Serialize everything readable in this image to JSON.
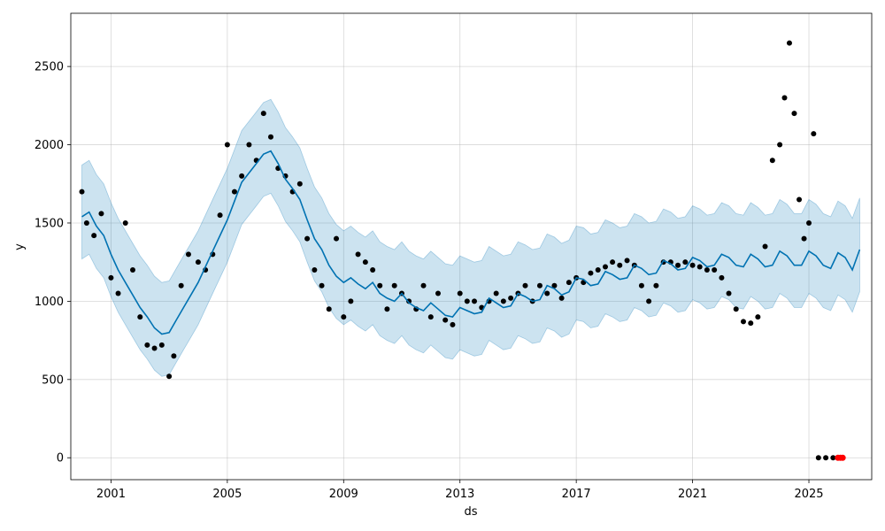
{
  "chart_data": {
    "type": "line",
    "title": "",
    "xlabel": "ds",
    "ylabel": "y",
    "x_range": [
      "1999-08-15",
      "2027-03-01"
    ],
    "ylim": [
      -140,
      2840
    ],
    "x_ticks": [
      "2001",
      "2005",
      "2009",
      "2013",
      "2017",
      "2021",
      "2025"
    ],
    "y_ticks": [
      0,
      500,
      1000,
      1500,
      2000,
      2500
    ],
    "grid": true,
    "legend": "none",
    "colors": {
      "forecast": "#0072b2",
      "interval": "#0072b2",
      "observed": "#000000",
      "highlight": "#ff0000"
    },
    "series": [
      {
        "role": "forecast-yhat",
        "points": [
          [
            "2000-01-01",
            1540
          ],
          [
            "2000-04-01",
            1570
          ],
          [
            "2000-07-01",
            1480
          ],
          [
            "2000-10-01",
            1420
          ],
          [
            "2001-01-01",
            1300
          ],
          [
            "2001-04-01",
            1200
          ],
          [
            "2001-07-01",
            1120
          ],
          [
            "2001-10-01",
            1040
          ],
          [
            "2002-01-01",
            960
          ],
          [
            "2002-04-01",
            900
          ],
          [
            "2002-07-01",
            830
          ],
          [
            "2002-10-01",
            790
          ],
          [
            "2003-01-01",
            800
          ],
          [
            "2003-04-01",
            880
          ],
          [
            "2003-07-01",
            960
          ],
          [
            "2003-10-01",
            1040
          ],
          [
            "2004-01-01",
            1120
          ],
          [
            "2004-04-01",
            1220
          ],
          [
            "2004-07-01",
            1320
          ],
          [
            "2004-10-01",
            1420
          ],
          [
            "2005-01-01",
            1520
          ],
          [
            "2005-04-01",
            1640
          ],
          [
            "2005-07-01",
            1760
          ],
          [
            "2005-10-01",
            1820
          ],
          [
            "2006-01-01",
            1880
          ],
          [
            "2006-04-01",
            1940
          ],
          [
            "2006-07-01",
            1960
          ],
          [
            "2006-10-01",
            1880
          ],
          [
            "2007-01-01",
            1780
          ],
          [
            "2007-04-01",
            1720
          ],
          [
            "2007-07-01",
            1650
          ],
          [
            "2007-10-01",
            1520
          ],
          [
            "2008-01-01",
            1400
          ],
          [
            "2008-04-01",
            1330
          ],
          [
            "2008-07-01",
            1230
          ],
          [
            "2008-10-01",
            1160
          ],
          [
            "2009-01-01",
            1120
          ],
          [
            "2009-04-01",
            1150
          ],
          [
            "2009-07-01",
            1110
          ],
          [
            "2009-10-01",
            1080
          ],
          [
            "2010-01-01",
            1120
          ],
          [
            "2010-04-01",
            1050
          ],
          [
            "2010-07-01",
            1020
          ],
          [
            "2010-10-01",
            1000
          ],
          [
            "2011-01-01",
            1050
          ],
          [
            "2011-04-01",
            990
          ],
          [
            "2011-07-01",
            960
          ],
          [
            "2011-10-01",
            940
          ],
          [
            "2012-01-01",
            990
          ],
          [
            "2012-04-01",
            950
          ],
          [
            "2012-07-01",
            910
          ],
          [
            "2012-10-01",
            900
          ],
          [
            "2013-01-01",
            960
          ],
          [
            "2013-04-01",
            940
          ],
          [
            "2013-07-01",
            920
          ],
          [
            "2013-10-01",
            930
          ],
          [
            "2014-01-01",
            1020
          ],
          [
            "2014-04-01",
            990
          ],
          [
            "2014-07-01",
            960
          ],
          [
            "2014-10-01",
            970
          ],
          [
            "2015-01-01",
            1050
          ],
          [
            "2015-04-01",
            1030
          ],
          [
            "2015-07-01",
            1000
          ],
          [
            "2015-10-01",
            1010
          ],
          [
            "2016-01-01",
            1100
          ],
          [
            "2016-04-01",
            1080
          ],
          [
            "2016-07-01",
            1040
          ],
          [
            "2016-10-01",
            1060
          ],
          [
            "2017-01-01",
            1150
          ],
          [
            "2017-04-01",
            1140
          ],
          [
            "2017-07-01",
            1100
          ],
          [
            "2017-10-01",
            1110
          ],
          [
            "2018-01-01",
            1190
          ],
          [
            "2018-04-01",
            1170
          ],
          [
            "2018-07-01",
            1140
          ],
          [
            "2018-10-01",
            1150
          ],
          [
            "2019-01-01",
            1230
          ],
          [
            "2019-04-01",
            1210
          ],
          [
            "2019-07-01",
            1170
          ],
          [
            "2019-10-01",
            1180
          ],
          [
            "2020-01-01",
            1260
          ],
          [
            "2020-04-01",
            1240
          ],
          [
            "2020-07-01",
            1200
          ],
          [
            "2020-10-01",
            1210
          ],
          [
            "2021-01-01",
            1280
          ],
          [
            "2021-04-01",
            1260
          ],
          [
            "2021-07-01",
            1220
          ],
          [
            "2021-10-01",
            1230
          ],
          [
            "2022-01-01",
            1300
          ],
          [
            "2022-04-01",
            1280
          ],
          [
            "2022-07-01",
            1230
          ],
          [
            "2022-10-01",
            1220
          ],
          [
            "2023-01-01",
            1300
          ],
          [
            "2023-04-01",
            1270
          ],
          [
            "2023-07-01",
            1220
          ],
          [
            "2023-10-01",
            1230
          ],
          [
            "2024-01-01",
            1320
          ],
          [
            "2024-04-01",
            1290
          ],
          [
            "2024-07-01",
            1230
          ],
          [
            "2024-10-01",
            1230
          ],
          [
            "2025-01-01",
            1320
          ],
          [
            "2025-04-01",
            1290
          ],
          [
            "2025-07-01",
            1230
          ],
          [
            "2025-10-01",
            1210
          ],
          [
            "2026-01-01",
            1310
          ],
          [
            "2026-04-01",
            1280
          ],
          [
            "2026-07-01",
            1200
          ],
          [
            "2026-10-01",
            1330
          ]
        ]
      },
      {
        "role": "observed",
        "points": [
          [
            "2000-01-01",
            1700
          ],
          [
            "2000-03-01",
            1500
          ],
          [
            "2000-06-01",
            1420
          ],
          [
            "2000-09-01",
            1560
          ],
          [
            "2001-01-01",
            1150
          ],
          [
            "2001-04-01",
            1050
          ],
          [
            "2001-07-01",
            1500
          ],
          [
            "2001-10-01",
            1200
          ],
          [
            "2002-01-01",
            900
          ],
          [
            "2002-04-01",
            720
          ],
          [
            "2002-07-01",
            700
          ],
          [
            "2002-10-01",
            720
          ],
          [
            "2003-01-01",
            520
          ],
          [
            "2003-03-01",
            650
          ],
          [
            "2003-06-01",
            1100
          ],
          [
            "2003-09-01",
            1300
          ],
          [
            "2004-01-01",
            1250
          ],
          [
            "2004-04-01",
            1200
          ],
          [
            "2004-07-01",
            1300
          ],
          [
            "2004-10-01",
            1550
          ],
          [
            "2005-01-01",
            2000
          ],
          [
            "2005-04-01",
            1700
          ],
          [
            "2005-07-01",
            1800
          ],
          [
            "2005-10-01",
            2000
          ],
          [
            "2006-01-01",
            1900
          ],
          [
            "2006-04-01",
            2200
          ],
          [
            "2006-07-01",
            2050
          ],
          [
            "2006-10-01",
            1850
          ],
          [
            "2007-01-01",
            1800
          ],
          [
            "2007-04-01",
            1700
          ],
          [
            "2007-07-01",
            1750
          ],
          [
            "2007-10-01",
            1400
          ],
          [
            "2008-01-01",
            1200
          ],
          [
            "2008-04-01",
            1100
          ],
          [
            "2008-07-01",
            950
          ],
          [
            "2008-10-01",
            1400
          ],
          [
            "2009-01-01",
            900
          ],
          [
            "2009-04-01",
            1000
          ],
          [
            "2009-07-01",
            1300
          ],
          [
            "2009-10-01",
            1250
          ],
          [
            "2010-01-01",
            1200
          ],
          [
            "2010-04-01",
            1100
          ],
          [
            "2010-07-01",
            950
          ],
          [
            "2010-10-01",
            1100
          ],
          [
            "2011-01-01",
            1050
          ],
          [
            "2011-04-01",
            1000
          ],
          [
            "2011-07-01",
            950
          ],
          [
            "2011-10-01",
            1100
          ],
          [
            "2012-01-01",
            900
          ],
          [
            "2012-04-01",
            1050
          ],
          [
            "2012-07-01",
            880
          ],
          [
            "2012-10-01",
            850
          ],
          [
            "2013-01-01",
            1050
          ],
          [
            "2013-04-01",
            1000
          ],
          [
            "2013-07-01",
            1000
          ],
          [
            "2013-10-01",
            960
          ],
          [
            "2014-01-01",
            1000
          ],
          [
            "2014-04-01",
            1050
          ],
          [
            "2014-07-01",
            1000
          ],
          [
            "2014-10-01",
            1020
          ],
          [
            "2015-01-01",
            1050
          ],
          [
            "2015-04-01",
            1100
          ],
          [
            "2015-07-01",
            1000
          ],
          [
            "2015-10-01",
            1100
          ],
          [
            "2016-01-01",
            1050
          ],
          [
            "2016-04-01",
            1100
          ],
          [
            "2016-07-01",
            1020
          ],
          [
            "2016-10-01",
            1120
          ],
          [
            "2017-01-01",
            1150
          ],
          [
            "2017-04-01",
            1120
          ],
          [
            "2017-07-01",
            1180
          ],
          [
            "2017-10-01",
            1200
          ],
          [
            "2018-01-01",
            1220
          ],
          [
            "2018-04-01",
            1250
          ],
          [
            "2018-07-01",
            1230
          ],
          [
            "2018-10-01",
            1260
          ],
          [
            "2019-01-01",
            1230
          ],
          [
            "2019-04-01",
            1100
          ],
          [
            "2019-07-01",
            1000
          ],
          [
            "2019-10-01",
            1100
          ],
          [
            "2020-01-01",
            1250
          ],
          [
            "2020-04-01",
            1250
          ],
          [
            "2020-07-01",
            1230
          ],
          [
            "2020-10-01",
            1250
          ],
          [
            "2021-01-01",
            1230
          ],
          [
            "2021-04-01",
            1220
          ],
          [
            "2021-07-01",
            1200
          ],
          [
            "2021-10-01",
            1200
          ],
          [
            "2022-01-01",
            1150
          ],
          [
            "2022-04-01",
            1050
          ],
          [
            "2022-07-01",
            950
          ],
          [
            "2022-10-01",
            870
          ],
          [
            "2023-01-01",
            860
          ],
          [
            "2023-04-01",
            900
          ],
          [
            "2023-07-01",
            1350
          ],
          [
            "2023-10-01",
            1900
          ],
          [
            "2024-01-01",
            2000
          ],
          [
            "2024-03-01",
            2300
          ],
          [
            "2024-05-01",
            2650
          ],
          [
            "2024-07-01",
            2200
          ],
          [
            "2024-09-01",
            1650
          ],
          [
            "2024-11-01",
            1400
          ],
          [
            "2025-01-01",
            1500
          ],
          [
            "2025-03-01",
            2070
          ],
          [
            "2025-05-01",
            0
          ],
          [
            "2025-08-01",
            0
          ],
          [
            "2025-11-01",
            0
          ]
        ]
      },
      {
        "role": "highlight",
        "points": [
          [
            "2026-01-01",
            0
          ],
          [
            "2026-02-01",
            0
          ],
          [
            "2026-03-01",
            0
          ]
        ]
      }
    ],
    "interval": {
      "lower_offset": 270,
      "upper_offset": 330
    }
  }
}
